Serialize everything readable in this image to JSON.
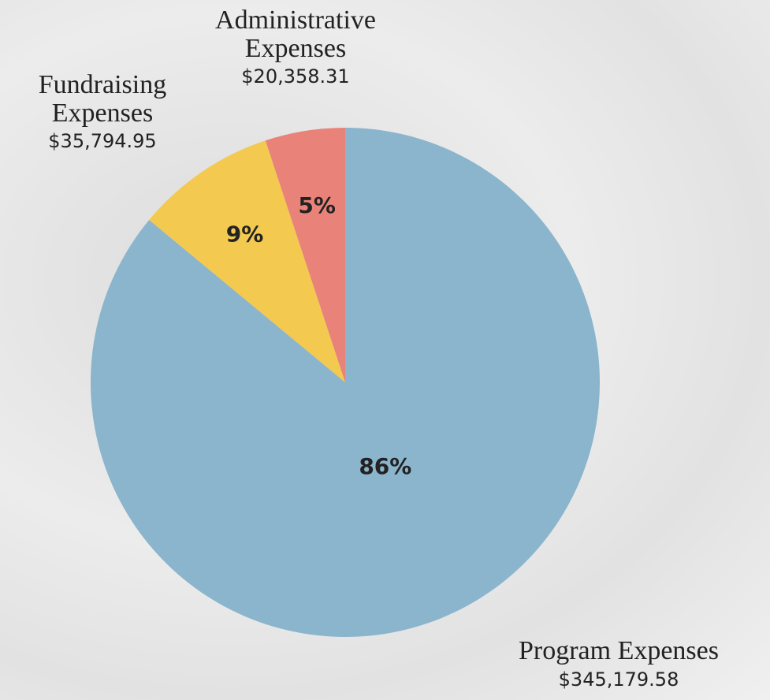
{
  "chart_data": {
    "type": "pie",
    "categories": [
      "Program Expenses",
      "Fundraising Expenses",
      "Administrative Expenses"
    ],
    "values": [
      345179.58,
      35794.95,
      20358.31
    ],
    "value_labels": [
      "$345,179.58",
      "$35,794.95",
      "$20,358.31"
    ],
    "percents": [
      86,
      9,
      5
    ],
    "percent_labels": [
      "86%",
      "9%",
      "5%"
    ],
    "colors": [
      "#8bb5cc",
      "#f3c94f",
      "#e9837a"
    ]
  }
}
